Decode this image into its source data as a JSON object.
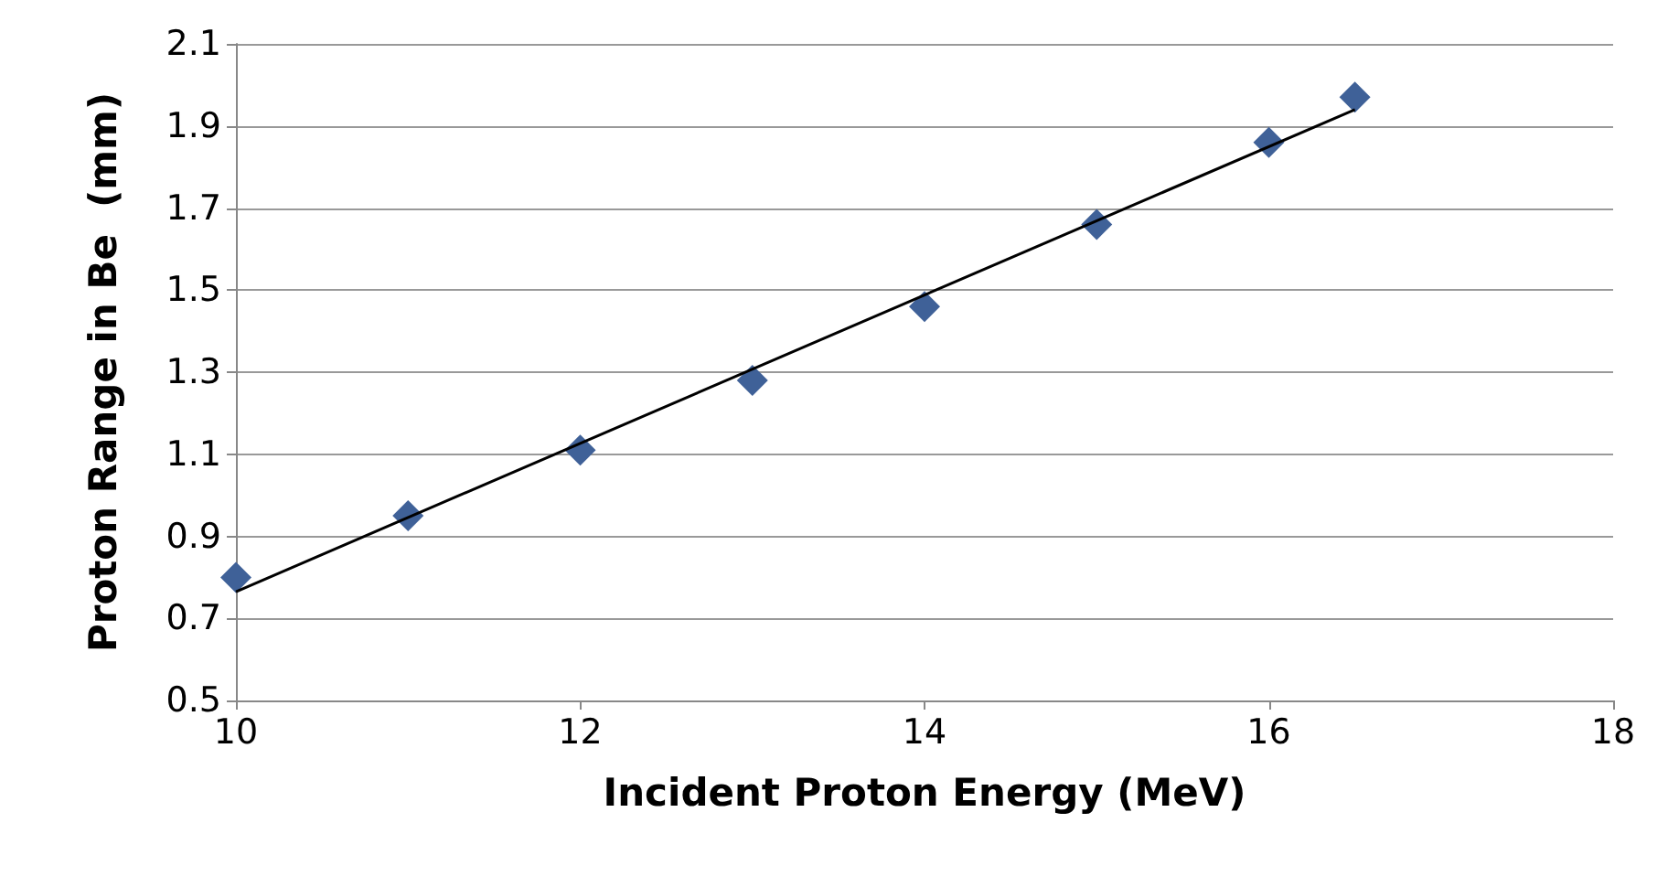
{
  "chart_data": {
    "type": "scatter",
    "xlabel": "Incident Proton Energy (MeV)",
    "ylabel": "Proton Range in Be  (mm)",
    "xlim": [
      10,
      18
    ],
    "xticks": [
      10,
      12,
      14,
      16,
      18
    ],
    "ylim": [
      0.5,
      2.1
    ],
    "yticks": [
      0.5,
      0.7,
      0.9,
      1.1,
      1.3,
      1.5,
      1.7,
      1.9,
      2.1
    ],
    "grid": "y",
    "series": [
      {
        "color": "#3f6198",
        "marker": "diamond",
        "x": [
          10,
          11,
          12,
          13,
          14,
          15,
          16,
          16.5
        ],
        "values": [
          0.8,
          0.95,
          1.11,
          1.28,
          1.46,
          1.66,
          1.86,
          1.97
        ]
      },
      {
        "type": "line",
        "color": "#000000",
        "marker": "none",
        "line_style": "solid",
        "x": [
          10,
          16.5
        ],
        "values": [
          0.765,
          1.94
        ]
      }
    ]
  }
}
